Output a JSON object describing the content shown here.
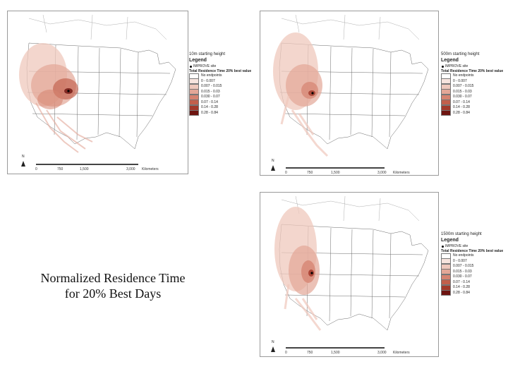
{
  "caption": {
    "line1": "Normalized Residence Time",
    "line2": "for 20% Best Days"
  },
  "panels": [
    {
      "height_title": "10m starting height",
      "legend_title": "Legend",
      "site_label": "IMPROVE site",
      "total_title": "Total Residence Time 20% best value",
      "classes": [
        {
          "label": "No endpoints",
          "color": "#ffffff"
        },
        {
          "label": "0 - 0.007",
          "color": "#f7e4de"
        },
        {
          "label": "0.007 - 0.015",
          "color": "#efc8bc"
        },
        {
          "label": "0.015 - 0.03",
          "color": "#e3a797"
        },
        {
          "label": "0.030 - 0.07",
          "color": "#d68370"
        },
        {
          "label": "0.07 - 0.14",
          "color": "#c25f4b"
        },
        {
          "label": "0.14 - 0.28",
          "color": "#a3392a"
        },
        {
          "label": "0.28 - 0.84",
          "color": "#6e1410"
        }
      ],
      "scale_labels": [
        "0",
        "750",
        "1,500",
        "3,000"
      ],
      "scale_unit": "Kilometers",
      "north": "N"
    },
    {
      "height_title": "500m starting height",
      "legend_title": "Legend",
      "site_label": "IMPROVE site",
      "total_title": "Total Residence Time 20% best value",
      "classes": [
        {
          "label": "No endpoints",
          "color": "#ffffff"
        },
        {
          "label": "0 - 0.007",
          "color": "#f7e4de"
        },
        {
          "label": "0.007 - 0.015",
          "color": "#efc8bc"
        },
        {
          "label": "0.015 - 0.03",
          "color": "#e3a797"
        },
        {
          "label": "0.030 - 0.07",
          "color": "#d68370"
        },
        {
          "label": "0.07 - 0.14",
          "color": "#c25f4b"
        },
        {
          "label": "0.14 - 0.28",
          "color": "#a3392a"
        },
        {
          "label": "0.28 - 0.84",
          "color": "#6e1410"
        }
      ],
      "scale_labels": [
        "0",
        "750",
        "1,500",
        "3,000"
      ],
      "scale_unit": "Kilometers",
      "north": "N"
    },
    {
      "height_title": "1500m starting height",
      "legend_title": "Legend",
      "site_label": "IMPROVE site",
      "total_title": "Total Residence Time 20% best value",
      "classes": [
        {
          "label": "No endpoints",
          "color": "#ffffff"
        },
        {
          "label": "0 - 0.007",
          "color": "#f7e4de"
        },
        {
          "label": "0.007 - 0.015",
          "color": "#efc8bc"
        },
        {
          "label": "0.015 - 0.03",
          "color": "#e3a797"
        },
        {
          "label": "0.030 - 0.07",
          "color": "#d68370"
        },
        {
          "label": "0.07 - 0.14",
          "color": "#c25f4b"
        },
        {
          "label": "0.14 - 0.28",
          "color": "#a3392a"
        },
        {
          "label": "0.28 - 0.84",
          "color": "#6e1410"
        }
      ],
      "scale_labels": [
        "0",
        "750",
        "1,500",
        "3,000"
      ],
      "scale_unit": "Kilometers",
      "north": "N"
    }
  ]
}
